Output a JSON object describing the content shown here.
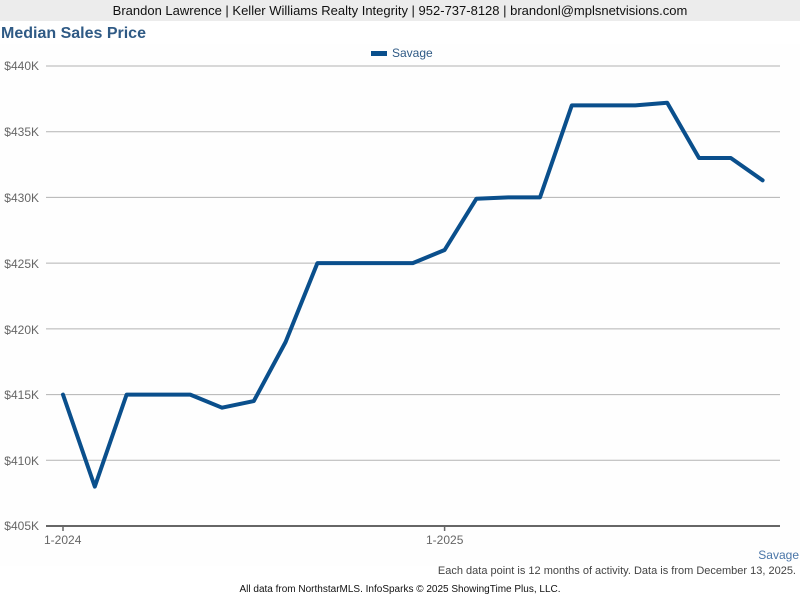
{
  "header": {
    "contact_line": "Brandon Lawrence | Keller Williams Realty Integrity | 952-737-8128 | brandonl@mplsnetvisions.com"
  },
  "legend": {
    "series_label": "Savage",
    "series_color": "#0a4f8c"
  },
  "y_axis_labels": [
    "$440K",
    "$435K",
    "$430K",
    "$425K",
    "$420K",
    "$415K",
    "$410K",
    "$405K"
  ],
  "x_axis_labels": [
    "1-2024",
    "1-2025"
  ],
  "series_tag": "Savage",
  "note": "Each data point is 12 months of activity. Data is from December 13, 2025.",
  "footer": "All data from NorthstarMLS. InfoSparks © 2025 ShowingTime Plus, LLC.",
  "chart_data": {
    "type": "line",
    "title": "Median Sales Price",
    "xlabel": "",
    "ylabel": "",
    "ylim": [
      405000,
      440000
    ],
    "grid": true,
    "legend_position": "top",
    "x": [
      "1-2024",
      "2-2024",
      "3-2024",
      "4-2024",
      "5-2024",
      "6-2024",
      "7-2024",
      "8-2024",
      "9-2024",
      "10-2024",
      "11-2024",
      "12-2024",
      "1-2025",
      "2-2025",
      "3-2025",
      "4-2025",
      "5-2025",
      "6-2025",
      "7-2025",
      "8-2025",
      "9-2025",
      "10-2025",
      "11-2025"
    ],
    "series": [
      {
        "name": "Savage",
        "color": "#0a4f8c",
        "values": [
          415000,
          408000,
          415000,
          415000,
          415000,
          414000,
          414500,
          419000,
          425000,
          425000,
          425000,
          425000,
          426000,
          429900,
          430000,
          430000,
          437000,
          437000,
          437000,
          437200,
          433000,
          433000,
          431300
        ]
      }
    ],
    "y_ticks": [
      405000,
      410000,
      415000,
      420000,
      425000,
      430000,
      435000,
      440000
    ],
    "x_ticks": [
      "1-2024",
      "1-2025"
    ]
  }
}
